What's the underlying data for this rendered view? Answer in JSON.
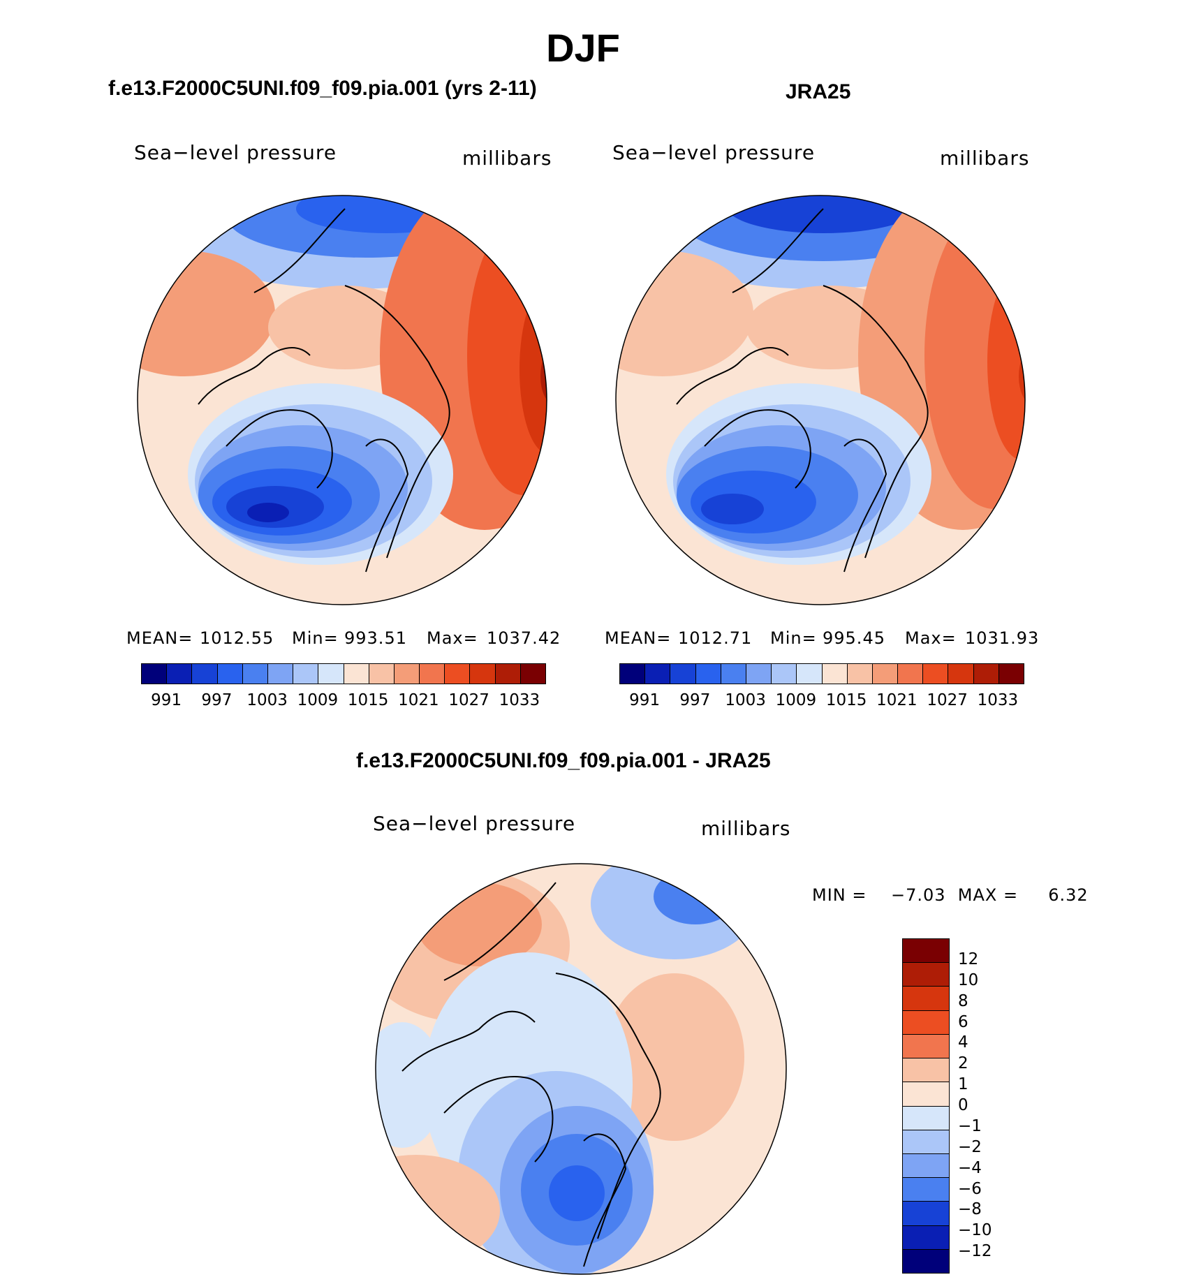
{
  "main_title": "DJF",
  "panels": [
    {
      "title": "f.e13.F2000C5UNI.f09_f09.pia.001 (yrs 2-11)",
      "left_label": "Sea−level pressure",
      "right_label": "millibars",
      "mean_label": "MEAN=",
      "mean": "1012.55",
      "min_label": "Min=",
      "min": "993.51",
      "max_label": "Max=",
      "max": "1037.42"
    },
    {
      "title": "JRA25",
      "left_label": "Sea−level pressure",
      "right_label": "millibars",
      "mean_label": "MEAN=",
      "mean": "1012.71",
      "min_label": "Min=",
      "min": "995.45",
      "max_label": "Max=",
      "max": "1031.93"
    },
    {
      "title": "f.e13.F2000C5UNI.f09_f09.pia.001 - JRA25",
      "left_label": "Sea−level pressure",
      "right_label": "millibars",
      "minmax_text": "MIN =    −7.03  MAX =     6.32"
    }
  ],
  "top_colorbar": {
    "colors": [
      "#00007a",
      "#0a1fb4",
      "#1742d6",
      "#2962ee",
      "#4a80f0",
      "#7ea4f4",
      "#abc6f8",
      "#d6e6fa",
      "#fbe4d4",
      "#f8c2a6",
      "#f49d78",
      "#f1754e",
      "#ec4e22",
      "#d6360e",
      "#ae1d06",
      "#7a0002"
    ],
    "tick_labels": [
      "991",
      "997",
      "1003",
      "1009",
      "1015",
      "1021",
      "1027",
      "1033"
    ]
  },
  "diff_colorbar": {
    "colors": [
      "#7a0002",
      "#ae1d06",
      "#d6360e",
      "#ec4e22",
      "#f1754e",
      "#f8c2a6",
      "#fbe4d4",
      "#d6e6fa",
      "#abc6f8",
      "#7ea4f4",
      "#4a80f0",
      "#1742d6",
      "#0a1fb4",
      "#00007a"
    ],
    "tick_labels": [
      "12",
      "10",
      "8",
      "6",
      "4",
      "2",
      "1",
      "0",
      "−1",
      "−2",
      "−4",
      "−6",
      "−8",
      "−10",
      "−12"
    ]
  }
}
